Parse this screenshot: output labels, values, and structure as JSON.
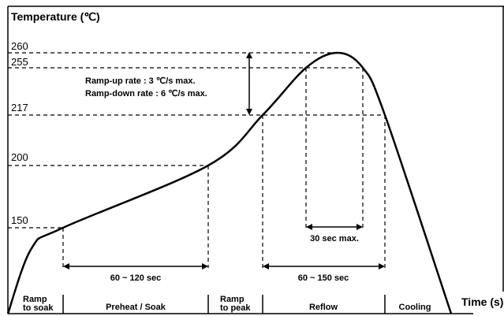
{
  "chart_data": {
    "type": "line",
    "title": "",
    "ylabel": "Temperature (℃)",
    "xlabel": "Time (s)",
    "y_ticks": [
      "260",
      "255",
      "217",
      "200",
      "150"
    ],
    "annotation_lines": [
      "Ramp-up rate : 3 ℃/s max.",
      "Ramp-down rate : 6 ℃/s max."
    ],
    "intervals": [
      {
        "label": "60 ~ 120 sec",
        "from_level": "150",
        "to_level": "200"
      },
      {
        "label": "60 ~ 150 sec",
        "level": "217"
      },
      {
        "label": "30 sec max.",
        "level": "255"
      }
    ],
    "phases": [
      {
        "lines": [
          "Ramp",
          "to soak"
        ]
      },
      {
        "lines": [
          "Preheat / Soak"
        ]
      },
      {
        "lines": [
          "Ramp",
          "to peak"
        ]
      },
      {
        "lines": [
          "Reflow"
        ]
      },
      {
        "lines": [
          "Cooling"
        ]
      }
    ],
    "series": [
      {
        "values": [
          {
            "t": 0,
            "y": 25
          },
          {
            "t": 1,
            "y": 120
          },
          {
            "t": 2,
            "y": 150
          },
          {
            "t": 3,
            "y": 200
          },
          {
            "t": 4,
            "y": 217
          },
          {
            "t": 5,
            "y": 255
          },
          {
            "t": 6,
            "y": 260
          },
          {
            "t": 7,
            "y": 255
          },
          {
            "t": 8,
            "y": 217
          },
          {
            "t": 9,
            "y": 25
          }
        ]
      }
    ],
    "grid": false,
    "legend": "none"
  }
}
